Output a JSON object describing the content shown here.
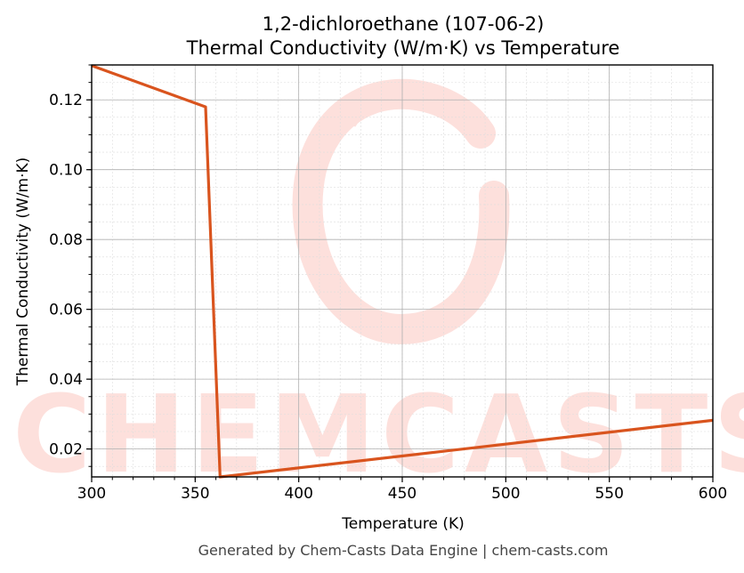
{
  "chart_data": {
    "type": "line",
    "title": "1,2-dichloroethane (107-06-2)",
    "subtitle": "Thermal Conductivity (W/m·K) vs Temperature",
    "xlabel": "Temperature (K)",
    "ylabel": "Thermal Conductivity (W/m·K)",
    "xlim": [
      300,
      600
    ],
    "ylim": [
      0.012,
      0.13
    ],
    "xticks": [
      300,
      350,
      400,
      450,
      500,
      550,
      600
    ],
    "yticks": [
      0.02,
      0.04,
      0.06,
      0.08,
      0.1,
      0.12
    ],
    "ytick_labels": [
      "0.02",
      "0.04",
      "0.06",
      "0.08",
      "0.10",
      "0.12"
    ],
    "grid": true,
    "series": [
      {
        "color": "#d9541e",
        "x": [
          300,
          355,
          362,
          600
        ],
        "y": [
          0.1298,
          0.118,
          0.012,
          0.0282
        ]
      }
    ]
  },
  "watermark": {
    "text": "CHEMCASTS",
    "color": "#fde0dc"
  },
  "footer": "Generated by Chem-Casts Data Engine | chem-casts.com"
}
